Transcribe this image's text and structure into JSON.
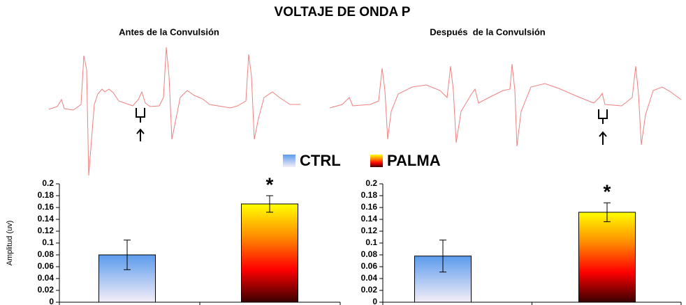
{
  "title": "VOLTAJE DE ONDA P",
  "legend": [
    {
      "name": "CTRL",
      "colors": [
        "#5b9bec",
        "#f5eef8"
      ]
    },
    {
      "name": "PALMA",
      "colors": [
        "#ffff00",
        "#ff8c00",
        "#ff0000",
        "#3a0000"
      ]
    }
  ],
  "chart_data": [
    {
      "type": "bar",
      "title": "Antes de la Convulsión",
      "ylabel": "Amplitud (uv)",
      "categories": [
        null,
        null
      ],
      "values": [
        0.08,
        0.166
      ],
      "errors": [
        0.025,
        0.014
      ],
      "annotation": "*",
      "ylim": [
        0,
        0.2
      ],
      "yticks": [
        0,
        0.02,
        0.04,
        0.06,
        0.08,
        0.1,
        0.12,
        0.14,
        0.16,
        0.18,
        0.2
      ]
    },
    {
      "type": "bar",
      "title": "Después  de la Convulsión",
      "categories": [
        null,
        null
      ],
      "values": [
        0.078,
        0.152
      ],
      "errors": [
        0.027,
        0.016
      ],
      "annotation": "*",
      "ylim": [
        0,
        0.2
      ],
      "yticks": [
        0,
        0.02,
        0.04,
        0.06,
        0.08,
        0.1,
        0.12,
        0.14,
        0.16,
        0.18,
        0.2
      ]
    }
  ]
}
